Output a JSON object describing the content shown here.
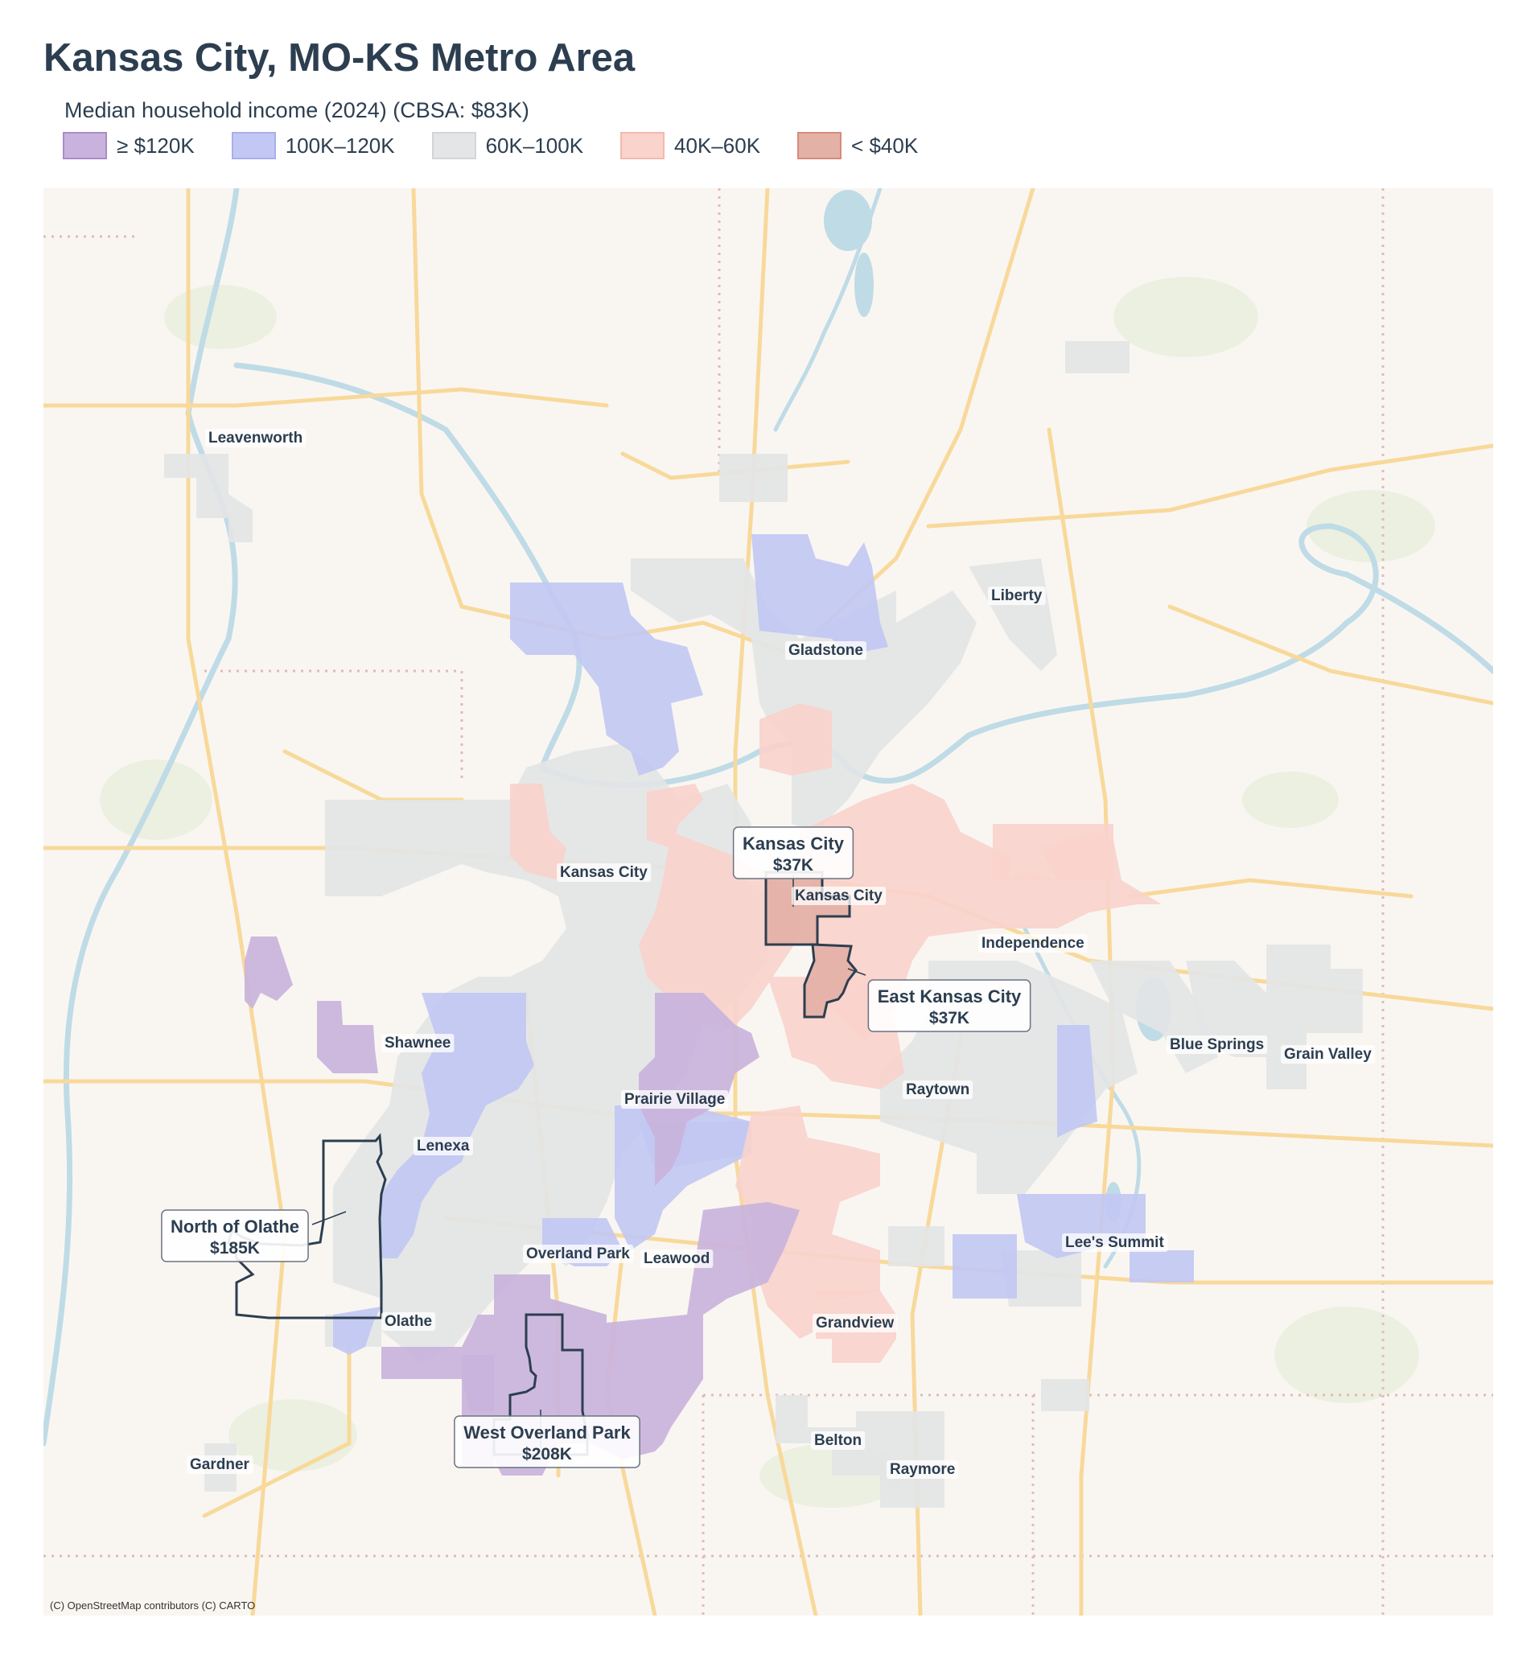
{
  "title": "Kansas City, MO-KS Metro Area",
  "legend": {
    "title": "Median household income (2024)  (CBSA: $83K)",
    "items": [
      {
        "label": "≥ $120K",
        "fill": "#c9b3dc",
        "stroke": "#a98cc9"
      },
      {
        "label": "100K–120K",
        "fill": "#c2c8f3",
        "stroke": "#a6b0ee"
      },
      {
        "label": "60K–100K",
        "fill": "#e3e5e6",
        "stroke": "#d3d6d8"
      },
      {
        "label": "40K–60K",
        "fill": "#f9d3cc",
        "stroke": "#f4b9ae"
      },
      {
        "label": "< $40K",
        "fill": "#e4b1a6",
        "stroke": "#d68b7c"
      }
    ]
  },
  "places": [
    "Leavenworth",
    "Liberty",
    "Gladstone",
    "Kansas City",
    "Kansas City",
    "Independence",
    "Shawnee",
    "Prairie Village",
    "Raytown",
    "Blue Springs",
    "Grain Valley",
    "Lenexa",
    "Overland Park",
    "Leawood",
    "Lee's Summit",
    "Olathe",
    "Grandview",
    "Belton",
    "Raymore",
    "Gardner"
  ],
  "callouts": [
    {
      "name": "Kansas City",
      "value": "$37K"
    },
    {
      "name": "East Kansas City",
      "value": "$37K"
    },
    {
      "name": "North of Olathe",
      "value": "$185K"
    },
    {
      "name": "West Overland Park",
      "value": "$208K"
    }
  ],
  "attribution": "(C) OpenStreetMap contributors (C) CARTO",
  "colors": {
    "basemap": "#f9f6f2",
    "water": "#bfdbe6",
    "road": "#f8d99a",
    "outline": "#2c3e50"
  }
}
